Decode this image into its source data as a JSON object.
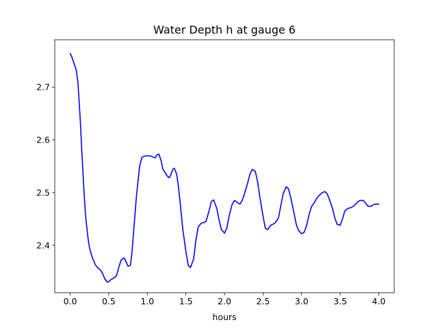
{
  "chart_data": {
    "type": "line",
    "title": "Water Depth h at gauge 6",
    "xlabel": "hours",
    "ylabel": "",
    "xlim": [
      -0.2,
      4.2
    ],
    "ylim": [
      2.31,
      2.79
    ],
    "xticks": [
      0.0,
      0.5,
      1.0,
      1.5,
      2.0,
      2.5,
      3.0,
      3.5,
      4.0
    ],
    "xtick_labels": [
      "0.0",
      "0.5",
      "1.0",
      "1.5",
      "2.0",
      "2.5",
      "3.0",
      "3.5",
      "4.0"
    ],
    "yticks": [
      2.4,
      2.5,
      2.6,
      2.7
    ],
    "ytick_labels": [
      "2.4",
      "2.5",
      "2.6",
      "2.7"
    ],
    "grid": false,
    "series": [
      {
        "color": "#0000ff",
        "x": [
          0.0,
          0.02,
          0.05,
          0.08,
          0.1,
          0.13,
          0.15,
          0.18,
          0.2,
          0.23,
          0.25,
          0.28,
          0.3,
          0.33,
          0.36,
          0.4,
          0.43,
          0.45,
          0.48,
          0.5,
          0.53,
          0.56,
          0.6,
          0.63,
          0.66,
          0.7,
          0.72,
          0.75,
          0.78,
          0.8,
          0.83,
          0.86,
          0.9,
          0.93,
          0.96,
          1.0,
          1.05,
          1.08,
          1.1,
          1.13,
          1.15,
          1.18,
          1.2,
          1.23,
          1.25,
          1.28,
          1.3,
          1.33,
          1.35,
          1.38,
          1.4,
          1.43,
          1.46,
          1.5,
          1.53,
          1.56,
          1.6,
          1.63,
          1.66,
          1.7,
          1.73,
          1.76,
          1.8,
          1.83,
          1.86,
          1.9,
          1.93,
          1.96,
          2.0,
          2.03,
          2.06,
          2.1,
          2.13,
          2.16,
          2.2,
          2.23,
          2.26,
          2.3,
          2.33,
          2.36,
          2.4,
          2.43,
          2.46,
          2.5,
          2.53,
          2.56,
          2.6,
          2.63,
          2.66,
          2.7,
          2.73,
          2.76,
          2.8,
          2.83,
          2.86,
          2.9,
          2.93,
          2.96,
          3.0,
          3.03,
          3.06,
          3.1,
          3.13,
          3.16,
          3.2,
          3.23,
          3.26,
          3.3,
          3.33,
          3.36,
          3.4,
          3.43,
          3.46,
          3.5,
          3.53,
          3.56,
          3.6,
          3.63,
          3.66,
          3.7,
          3.73,
          3.76,
          3.8,
          3.83,
          3.86,
          3.9,
          3.93,
          3.96,
          4.0
        ],
        "values": [
          2.764,
          2.758,
          2.745,
          2.732,
          2.71,
          2.64,
          2.58,
          2.5,
          2.455,
          2.415,
          2.395,
          2.38,
          2.372,
          2.362,
          2.357,
          2.352,
          2.343,
          2.336,
          2.33,
          2.331,
          2.335,
          2.337,
          2.342,
          2.358,
          2.372,
          2.376,
          2.37,
          2.36,
          2.362,
          2.385,
          2.44,
          2.495,
          2.55,
          2.567,
          2.569,
          2.57,
          2.569,
          2.567,
          2.566,
          2.572,
          2.573,
          2.56,
          2.545,
          2.538,
          2.533,
          2.528,
          2.532,
          2.544,
          2.546,
          2.535,
          2.515,
          2.475,
          2.43,
          2.388,
          2.362,
          2.358,
          2.374,
          2.41,
          2.435,
          2.442,
          2.443,
          2.445,
          2.465,
          2.483,
          2.486,
          2.47,
          2.448,
          2.43,
          2.423,
          2.432,
          2.455,
          2.478,
          2.485,
          2.482,
          2.478,
          2.485,
          2.498,
          2.518,
          2.535,
          2.544,
          2.54,
          2.52,
          2.49,
          2.455,
          2.432,
          2.43,
          2.438,
          2.44,
          2.443,
          2.452,
          2.475,
          2.497,
          2.511,
          2.507,
          2.49,
          2.462,
          2.44,
          2.428,
          2.422,
          2.424,
          2.435,
          2.46,
          2.474,
          2.48,
          2.49,
          2.495,
          2.499,
          2.502,
          2.498,
          2.487,
          2.47,
          2.452,
          2.44,
          2.438,
          2.45,
          2.465,
          2.47,
          2.471,
          2.473,
          2.478,
          2.483,
          2.485,
          2.485,
          2.48,
          2.474,
          2.474,
          2.477,
          2.478,
          2.478
        ]
      }
    ]
  }
}
